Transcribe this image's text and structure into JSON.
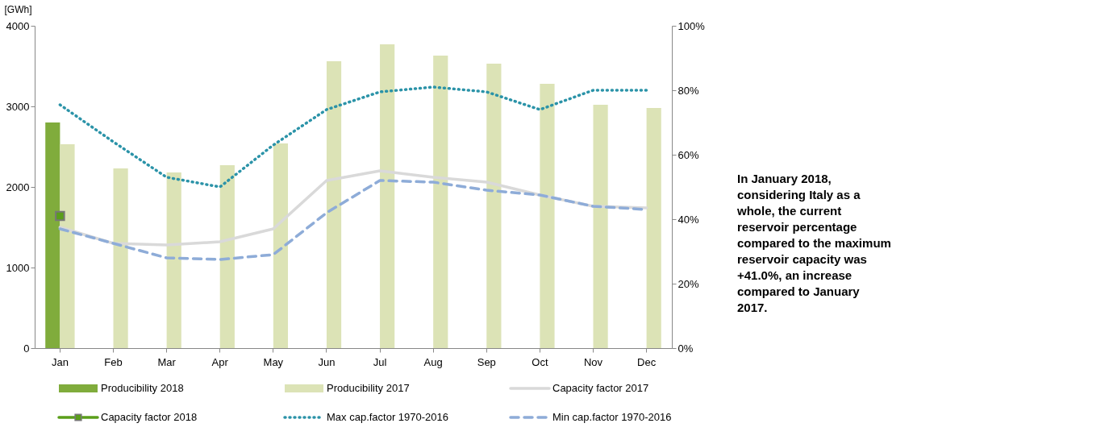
{
  "chart_data": {
    "type": "bar",
    "categories": [
      "Jan",
      "Feb",
      "Mar",
      "Apr",
      "May",
      "Jun",
      "Jul",
      "Aug",
      "Sep",
      "Oct",
      "Nov",
      "Dec"
    ],
    "ylabel": "[GWh]",
    "ylim": [
      0,
      4000
    ],
    "yticks": [
      0,
      1000,
      2000,
      3000,
      4000
    ],
    "y2lim": [
      0,
      100
    ],
    "y2ticks": [
      {
        "value": 0,
        "label": "0%"
      },
      {
        "value": 20,
        "label": "20%"
      },
      {
        "value": 40,
        "label": "40%"
      },
      {
        "value": 60,
        "label": "60%"
      },
      {
        "value": 80,
        "label": "80%"
      },
      {
        "value": 100,
        "label": "100%"
      }
    ],
    "series": [
      {
        "name": "Producibility 2018",
        "color": "#80ac3c",
        "values": [
          2800,
          null,
          null,
          null,
          null,
          null,
          null,
          null,
          null,
          null,
          null,
          null
        ]
      },
      {
        "name": "Producibility 2017",
        "color": "#dce3b6",
        "values": [
          2530,
          2230,
          2180,
          2270,
          2540,
          3560,
          3770,
          3630,
          3530,
          3280,
          3020,
          2980
        ]
      },
      {
        "name": "Capacity factor 2017",
        "type": "line",
        "axis": "y2",
        "color": "#d9d9d9",
        "line_style": "solid",
        "values": [
          37.5,
          32.5,
          32,
          33,
          37,
          52,
          55,
          53,
          51.5,
          47.5,
          44,
          43.5
        ]
      },
      {
        "name": "Capacity factor 2018",
        "type": "line",
        "axis": "y2",
        "color": "#5a9e1a",
        "line_style": "solid",
        "marker": "square",
        "values": [
          41.0,
          null,
          null,
          null,
          null,
          null,
          null,
          null,
          null,
          null,
          null,
          null
        ]
      },
      {
        "name": "Max cap.factor 1970-2016",
        "type": "line",
        "axis": "y2",
        "color": "#2b93a8",
        "line_style": "dotted",
        "values": [
          75.5,
          64,
          53,
          50,
          63,
          74,
          79.5,
          81,
          79.5,
          74,
          80,
          80
        ]
      },
      {
        "name": "Min cap.factor 1970-2016",
        "type": "line",
        "axis": "y2",
        "color": "#8eacd8",
        "line_style": "dashed",
        "values": [
          37,
          32.5,
          28,
          27.5,
          29,
          42,
          52,
          51.5,
          49,
          47.5,
          44,
          43
        ]
      }
    ],
    "grid": false,
    "legend": "bottom",
    "annotations": [
      "In January 2018, considering Italy as a whole, the current reservoir percentage compared to the maximum reservoir capacity was +41.0%, an increase compared to January 2017."
    ]
  }
}
